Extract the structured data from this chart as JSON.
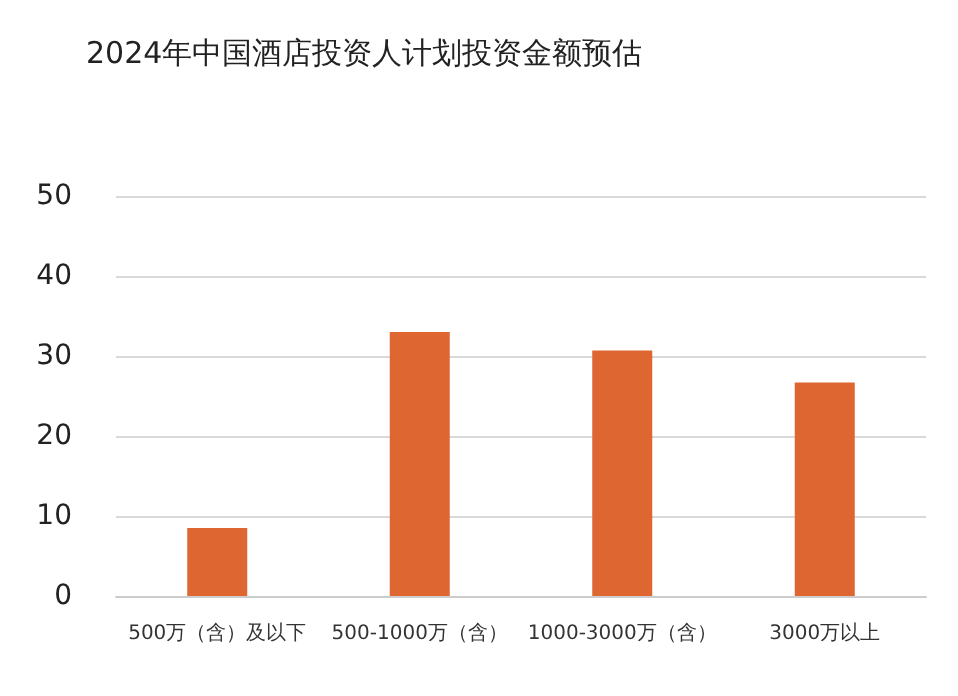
{
  "chart_data": {
    "type": "bar",
    "title": "2024年中国酒店投资人计划投资金额预估",
    "categories": [
      "500万（含）及以下",
      "500-1000万（含）",
      "1000-3000万（含）",
      "3000万以上"
    ],
    "values": [
      8.5,
      33.0,
      30.7,
      26.7
    ],
    "color": "#dd6631",
    "ylim": [
      0,
      50
    ],
    "yticks": [
      0,
      10,
      20,
      30,
      40,
      50
    ],
    "grid": "y"
  }
}
